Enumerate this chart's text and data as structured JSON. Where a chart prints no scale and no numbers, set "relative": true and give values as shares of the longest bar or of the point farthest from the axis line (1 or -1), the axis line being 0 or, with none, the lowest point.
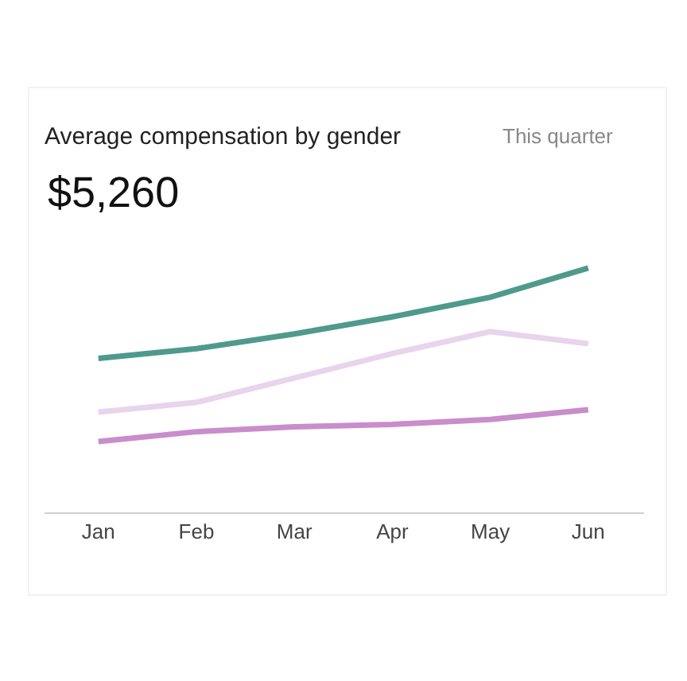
{
  "chart_data": {
    "type": "line",
    "title": "Average compensation by gender",
    "subtitle": "$5,260",
    "annotations": [
      "This quarter"
    ],
    "relative": true,
    "marker": "none",
    "line_style": "solid",
    "categories": [
      "Jan",
      "Feb",
      "Mar",
      "Apr",
      "May",
      "Jun"
    ],
    "series": [
      {
        "color": "#4e9a8c",
        "values": [
          0.63,
          0.67,
          0.73,
          0.8,
          0.88,
          1
        ]
      },
      {
        "color": "#e8d4ec",
        "values": [
          0.41,
          0.45,
          0.55,
          0.65,
          0.74,
          0.69
        ]
      },
      {
        "color": "#c98dcb",
        "values": [
          0.29,
          0.33,
          0.35,
          0.36,
          0.38,
          0.42
        ]
      }
    ]
  }
}
